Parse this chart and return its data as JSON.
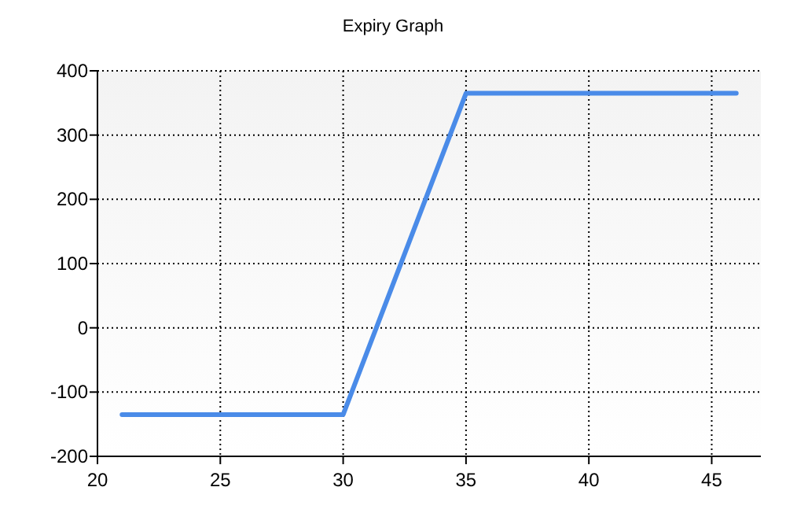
{
  "chart_data": {
    "type": "line",
    "title": "Expiry Graph",
    "x": [
      21,
      30,
      35,
      46
    ],
    "series": [
      {
        "color": "#4a8be8",
        "values": [
          -135,
          -135,
          365,
          365
        ]
      }
    ],
    "xlim": [
      20,
      47
    ],
    "xticks": [
      20,
      25,
      30,
      35,
      40,
      45
    ],
    "ylim": [
      -200,
      400
    ],
    "yticks": [
      -200,
      -100,
      0,
      100,
      200,
      300,
      400
    ],
    "grid": true,
    "marker": "none",
    "line_style": "solid"
  }
}
